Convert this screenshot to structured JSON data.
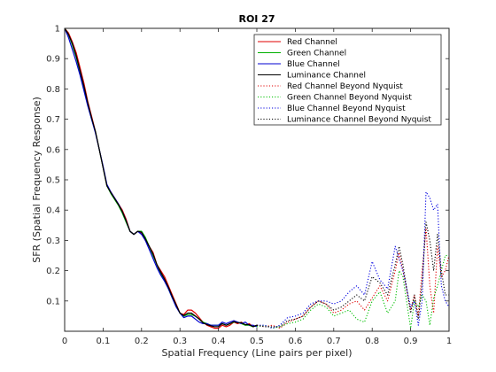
{
  "chart_data": {
    "type": "line",
    "title": "ROI 27",
    "xlabel": "Spatial Frequency (Line pairs per pixel)",
    "ylabel": "SFR (Spatial Frequency Response)",
    "xlim": [
      0,
      1
    ],
    "ylim": [
      0,
      1
    ],
    "xticks": [
      "0",
      "0.1",
      "0.2",
      "0.3",
      "0.4",
      "0.5",
      "0.6",
      "0.7",
      "0.8",
      "0.9",
      "1"
    ],
    "yticks": [
      "0.1",
      "0.2",
      "0.3",
      "0.4",
      "0.5",
      "0.6",
      "0.7",
      "0.8",
      "0.9",
      "1"
    ],
    "grid": false,
    "legend_position": "top-right",
    "series": [
      {
        "name": "Red Channel",
        "color": "#e00000",
        "style": "solid",
        "x": [
          0,
          0.01,
          0.02,
          0.03,
          0.04,
          0.05,
          0.06,
          0.07,
          0.08,
          0.09,
          0.1,
          0.11,
          0.12,
          0.13,
          0.14,
          0.15,
          0.16,
          0.17,
          0.18,
          0.19,
          0.2,
          0.21,
          0.22,
          0.23,
          0.24,
          0.25,
          0.26,
          0.27,
          0.28,
          0.29,
          0.3,
          0.31,
          0.32,
          0.33,
          0.34,
          0.35,
          0.36,
          0.37,
          0.38,
          0.39,
          0.4,
          0.41,
          0.42,
          0.43,
          0.44,
          0.45,
          0.46,
          0.47,
          0.48,
          0.49,
          0.5
        ],
        "y": [
          1.0,
          0.985,
          0.955,
          0.92,
          0.87,
          0.82,
          0.76,
          0.71,
          0.66,
          0.6,
          0.54,
          0.48,
          0.46,
          0.44,
          0.42,
          0.4,
          0.37,
          0.33,
          0.32,
          0.33,
          0.325,
          0.3,
          0.28,
          0.26,
          0.22,
          0.2,
          0.18,
          0.15,
          0.12,
          0.09,
          0.06,
          0.055,
          0.07,
          0.07,
          0.06,
          0.045,
          0.03,
          0.02,
          0.015,
          0.01,
          0.01,
          0.02,
          0.015,
          0.02,
          0.03,
          0.025,
          0.03,
          0.02,
          0.025,
          0.015,
          0.02
        ]
      },
      {
        "name": "Green Channel",
        "color": "#00b000",
        "style": "solid",
        "x": [
          0,
          0.01,
          0.02,
          0.03,
          0.04,
          0.05,
          0.06,
          0.07,
          0.08,
          0.09,
          0.1,
          0.11,
          0.12,
          0.13,
          0.14,
          0.15,
          0.16,
          0.17,
          0.18,
          0.19,
          0.2,
          0.21,
          0.22,
          0.23,
          0.24,
          0.25,
          0.26,
          0.27,
          0.28,
          0.29,
          0.3,
          0.31,
          0.32,
          0.33,
          0.34,
          0.35,
          0.36,
          0.37,
          0.38,
          0.39,
          0.4,
          0.41,
          0.42,
          0.43,
          0.44,
          0.45,
          0.46,
          0.47,
          0.48,
          0.49,
          0.5
        ],
        "y": [
          1.0,
          0.98,
          0.945,
          0.905,
          0.855,
          0.8,
          0.75,
          0.7,
          0.66,
          0.6,
          0.54,
          0.48,
          0.455,
          0.435,
          0.415,
          0.39,
          0.36,
          0.33,
          0.32,
          0.33,
          0.33,
          0.31,
          0.28,
          0.25,
          0.22,
          0.19,
          0.17,
          0.14,
          0.11,
          0.085,
          0.06,
          0.05,
          0.055,
          0.055,
          0.05,
          0.04,
          0.03,
          0.025,
          0.02,
          0.02,
          0.02,
          0.025,
          0.02,
          0.025,
          0.03,
          0.03,
          0.025,
          0.02,
          0.02,
          0.015,
          0.02
        ]
      },
      {
        "name": "Blue Channel",
        "color": "#0000d0",
        "style": "solid",
        "x": [
          0,
          0.01,
          0.02,
          0.03,
          0.04,
          0.05,
          0.06,
          0.07,
          0.08,
          0.09,
          0.1,
          0.11,
          0.12,
          0.13,
          0.14,
          0.15,
          0.16,
          0.17,
          0.18,
          0.19,
          0.2,
          0.21,
          0.22,
          0.23,
          0.24,
          0.25,
          0.26,
          0.27,
          0.28,
          0.29,
          0.3,
          0.31,
          0.32,
          0.33,
          0.34,
          0.35,
          0.36,
          0.37,
          0.38,
          0.39,
          0.4,
          0.41,
          0.42,
          0.43,
          0.44,
          0.45,
          0.46,
          0.47,
          0.48,
          0.49,
          0.5
        ],
        "y": [
          1.0,
          0.97,
          0.93,
          0.89,
          0.845,
          0.795,
          0.745,
          0.7,
          0.655,
          0.6,
          0.545,
          0.485,
          0.46,
          0.44,
          0.42,
          0.395,
          0.365,
          0.33,
          0.32,
          0.33,
          0.32,
          0.3,
          0.27,
          0.24,
          0.21,
          0.185,
          0.165,
          0.14,
          0.11,
          0.08,
          0.06,
          0.045,
          0.05,
          0.05,
          0.04,
          0.03,
          0.025,
          0.025,
          0.02,
          0.02,
          0.02,
          0.03,
          0.025,
          0.03,
          0.035,
          0.03,
          0.025,
          0.03,
          0.02,
          0.02,
          0.015
        ]
      },
      {
        "name": "Luminance Channel",
        "color": "#000000",
        "style": "solid",
        "x": [
          0,
          0.01,
          0.02,
          0.03,
          0.04,
          0.05,
          0.06,
          0.07,
          0.08,
          0.09,
          0.1,
          0.11,
          0.12,
          0.13,
          0.14,
          0.15,
          0.16,
          0.17,
          0.18,
          0.19,
          0.2,
          0.21,
          0.22,
          0.23,
          0.24,
          0.25,
          0.26,
          0.27,
          0.28,
          0.29,
          0.3,
          0.31,
          0.32,
          0.33,
          0.34,
          0.35,
          0.36,
          0.37,
          0.38,
          0.39,
          0.4,
          0.41,
          0.42,
          0.43,
          0.44,
          0.45,
          0.46,
          0.47,
          0.48,
          0.49,
          0.5
        ],
        "y": [
          1.0,
          0.98,
          0.95,
          0.91,
          0.86,
          0.81,
          0.755,
          0.705,
          0.66,
          0.6,
          0.54,
          0.48,
          0.458,
          0.438,
          0.418,
          0.395,
          0.365,
          0.33,
          0.32,
          0.33,
          0.327,
          0.305,
          0.28,
          0.255,
          0.22,
          0.195,
          0.172,
          0.145,
          0.115,
          0.087,
          0.06,
          0.052,
          0.06,
          0.06,
          0.05,
          0.04,
          0.028,
          0.022,
          0.018,
          0.015,
          0.015,
          0.025,
          0.02,
          0.025,
          0.032,
          0.028,
          0.028,
          0.022,
          0.022,
          0.015,
          0.02
        ]
      },
      {
        "name": "Red Channel Beyond Nyquist",
        "color": "#e00000",
        "style": "dotted",
        "x": [
          0.5,
          0.52,
          0.54,
          0.56,
          0.58,
          0.6,
          0.62,
          0.64,
          0.66,
          0.68,
          0.7,
          0.72,
          0.74,
          0.76,
          0.78,
          0.8,
          0.82,
          0.84,
          0.86,
          0.87,
          0.88,
          0.9,
          0.91,
          0.92,
          0.93,
          0.94,
          0.95,
          0.96,
          0.97,
          0.98,
          0.99,
          1.0
        ],
        "y": [
          0.02,
          0.015,
          0.02,
          0.01,
          0.03,
          0.04,
          0.05,
          0.08,
          0.1,
          0.09,
          0.06,
          0.07,
          0.09,
          0.1,
          0.07,
          0.11,
          0.15,
          0.1,
          0.2,
          0.26,
          0.2,
          0.07,
          0.12,
          0.05,
          0.2,
          0.34,
          0.15,
          0.06,
          0.28,
          0.18,
          0.2,
          0.25
        ]
      },
      {
        "name": "Green Channel Beyond Nyquist",
        "color": "#00c000",
        "style": "dotted",
        "x": [
          0.5,
          0.52,
          0.54,
          0.56,
          0.58,
          0.6,
          0.62,
          0.64,
          0.66,
          0.68,
          0.7,
          0.72,
          0.74,
          0.76,
          0.78,
          0.8,
          0.82,
          0.84,
          0.86,
          0.87,
          0.88,
          0.9,
          0.91,
          0.92,
          0.93,
          0.94,
          0.95,
          0.96,
          0.97,
          0.98,
          0.99,
          1.0
        ],
        "y": [
          0.015,
          0.02,
          0.01,
          0.015,
          0.025,
          0.03,
          0.04,
          0.07,
          0.09,
          0.08,
          0.05,
          0.06,
          0.07,
          0.04,
          0.03,
          0.1,
          0.13,
          0.06,
          0.1,
          0.2,
          0.18,
          0.01,
          0.1,
          0.08,
          0.12,
          0.1,
          0.02,
          0.11,
          0.15,
          0.2,
          0.25,
          0.25
        ]
      },
      {
        "name": "Blue Channel Beyond Nyquist",
        "color": "#0000e0",
        "style": "dotted",
        "x": [
          0.5,
          0.52,
          0.54,
          0.56,
          0.58,
          0.6,
          0.62,
          0.64,
          0.66,
          0.68,
          0.7,
          0.72,
          0.74,
          0.76,
          0.78,
          0.8,
          0.82,
          0.84,
          0.86,
          0.87,
          0.88,
          0.9,
          0.91,
          0.92,
          0.93,
          0.94,
          0.95,
          0.96,
          0.97,
          0.98,
          0.99,
          1.0
        ],
        "y": [
          0.02,
          0.02,
          0.01,
          0.02,
          0.045,
          0.05,
          0.06,
          0.09,
          0.1,
          0.1,
          0.09,
          0.1,
          0.13,
          0.15,
          0.12,
          0.23,
          0.17,
          0.14,
          0.28,
          0.24,
          0.2,
          0.08,
          0.1,
          0.02,
          0.1,
          0.46,
          0.44,
          0.4,
          0.42,
          0.15,
          0.1,
          0.08
        ]
      },
      {
        "name": "Luminance Channel Beyond Nyquist",
        "color": "#000000",
        "style": "dotted",
        "x": [
          0.5,
          0.52,
          0.54,
          0.56,
          0.58,
          0.6,
          0.62,
          0.64,
          0.66,
          0.68,
          0.7,
          0.72,
          0.74,
          0.76,
          0.78,
          0.8,
          0.82,
          0.84,
          0.86,
          0.87,
          0.88,
          0.9,
          0.91,
          0.92,
          0.93,
          0.94,
          0.95,
          0.96,
          0.97,
          0.98,
          0.99,
          1.0
        ],
        "y": [
          0.02,
          0.015,
          0.015,
          0.015,
          0.035,
          0.04,
          0.05,
          0.08,
          0.1,
          0.09,
          0.07,
          0.08,
          0.1,
          0.12,
          0.1,
          0.18,
          0.16,
          0.12,
          0.22,
          0.28,
          0.22,
          0.06,
          0.12,
          0.04,
          0.16,
          0.36,
          0.3,
          0.2,
          0.32,
          0.2,
          0.12,
          0.12
        ]
      }
    ]
  }
}
